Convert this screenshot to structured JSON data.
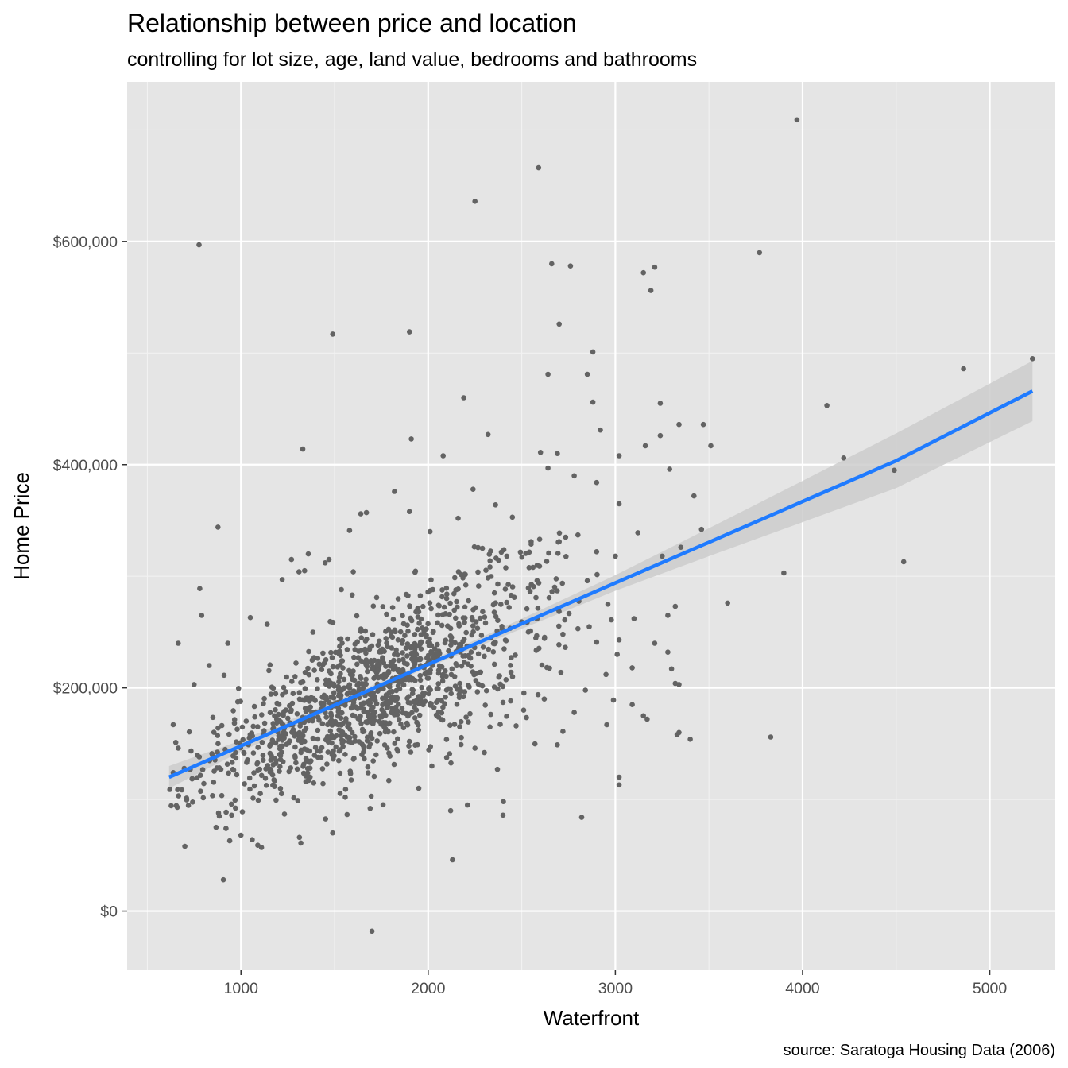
{
  "chart_data": {
    "type": "scatter",
    "title": "Relationship between price and location",
    "subtitle": "controlling for lot size, age, land value, bedrooms and bathrooms",
    "caption": "source: Saratoga Housing Data (2006)",
    "xlabel": "Waterfront",
    "ylabel": "Home Price",
    "xlim": [
      392,
      5350
    ],
    "ylim": [
      -53000,
      743000
    ],
    "x_ticks": [
      {
        "value": 1000,
        "label": "1000"
      },
      {
        "value": 2000,
        "label": "2000"
      },
      {
        "value": 3000,
        "label": "3000"
      },
      {
        "value": 4000,
        "label": "4000"
      },
      {
        "value": 5000,
        "label": "5000"
      }
    ],
    "y_ticks": [
      {
        "value": 0,
        "label": "$0"
      },
      {
        "value": 200000,
        "label": "$200,000"
      },
      {
        "value": 400000,
        "label": "$400,000"
      },
      {
        "value": 600000,
        "label": "$600,000"
      }
    ],
    "grid": true,
    "background": "#e5e5e5",
    "point_color": "#636363",
    "fit_color": "#1f7bff",
    "ribbon_color": "#cccccc",
    "fit": {
      "method": "lm",
      "x": [
        616,
        1000,
        1500,
        2000,
        2500,
        3000,
        3500,
        4000,
        4500,
        5228
      ],
      "y": [
        120000,
        148000,
        184500,
        221000,
        257500,
        294000,
        330500,
        367000,
        403500,
        466000
      ],
      "lower": [
        110000,
        143000,
        181000,
        218500,
        253000,
        287000,
        318000,
        348500,
        379000,
        439000
      ],
      "upper": [
        130000,
        153000,
        188000,
        223500,
        262000,
        301000,
        343000,
        385500,
        428000,
        493000
      ]
    },
    "points": [
      [
        776,
        597000
      ],
      [
        2250,
        636000
      ],
      [
        2590,
        666000
      ],
      [
        3970,
        709000
      ],
      [
        3770,
        590000
      ],
      [
        1490,
        517000
      ],
      [
        1900,
        519000
      ],
      [
        2660,
        580000
      ],
      [
        2760,
        578000
      ],
      [
        3150,
        572000
      ],
      [
        3210,
        577000
      ],
      [
        3190,
        556000
      ],
      [
        2700,
        526000
      ],
      [
        2880,
        501000
      ],
      [
        2640,
        481000
      ],
      [
        2850,
        481000
      ],
      [
        2190,
        460000
      ],
      [
        2880,
        456000
      ],
      [
        3240,
        455000
      ],
      [
        4130,
        453000
      ],
      [
        4860,
        486000
      ],
      [
        5228,
        495000
      ],
      [
        1910,
        423000
      ],
      [
        1330,
        414000
      ],
      [
        2320,
        427000
      ],
      [
        2920,
        431000
      ],
      [
        3340,
        436000
      ],
      [
        3470,
        436000
      ],
      [
        3510,
        417000
      ],
      [
        4220,
        406000
      ],
      [
        4490,
        395000
      ],
      [
        4540,
        313000
      ],
      [
        3900,
        303000
      ],
      [
        3600,
        276000
      ],
      [
        3830,
        156000
      ],
      [
        3020,
        408000
      ],
      [
        2080,
        408000
      ],
      [
        2600,
        411000
      ],
      [
        2690,
        410000
      ],
      [
        3160,
        417000
      ],
      [
        3240,
        426000
      ],
      [
        3290,
        396000
      ],
      [
        3420,
        372000
      ],
      [
        3350,
        326000
      ],
      [
        3460,
        342000
      ],
      [
        877,
        344000
      ],
      [
        1640,
        356000
      ],
      [
        1670,
        357000
      ],
      [
        1580,
        341000
      ],
      [
        1360,
        320000
      ],
      [
        1310,
        304000
      ],
      [
        1450,
        312000
      ],
      [
        1220,
        297000
      ],
      [
        1820,
        376000
      ],
      [
        1900,
        358000
      ],
      [
        2010,
        340000
      ],
      [
        2160,
        352000
      ],
      [
        2240,
        378000
      ],
      [
        2360,
        364000
      ],
      [
        2450,
        353000
      ],
      [
        2550,
        331000
      ],
      [
        2640,
        397000
      ],
      [
        2780,
        390000
      ],
      [
        2900,
        384000
      ],
      [
        3020,
        365000
      ],
      [
        3120,
        339000
      ],
      [
        3250,
        318000
      ],
      [
        3320,
        273000
      ],
      [
        3280,
        265000
      ],
      [
        3100,
        262000
      ],
      [
        3020,
        243000
      ],
      [
        3010,
        230000
      ],
      [
        3090,
        218000
      ],
      [
        3210,
        240000
      ],
      [
        3280,
        232000
      ],
      [
        3320,
        204000
      ],
      [
        3340,
        203000
      ],
      [
        3300,
        217000
      ],
      [
        3170,
        172000
      ],
      [
        3150,
        175000
      ],
      [
        3330,
        158000
      ],
      [
        3340,
        160000
      ],
      [
        3400,
        154000
      ],
      [
        2990,
        189000
      ],
      [
        3090,
        185000
      ],
      [
        3020,
        120000
      ],
      [
        3020,
        113000
      ],
      [
        2820,
        84000
      ],
      [
        2400,
        86000
      ],
      [
        2210,
        95000
      ],
      [
        2120,
        90000
      ],
      [
        2130,
        46000
      ],
      [
        2020,
        130000
      ],
      [
        1950,
        110000
      ],
      [
        1790,
        117000
      ],
      [
        1700,
        -18000
      ],
      [
        1690,
        92000
      ],
      [
        1490,
        70000
      ],
      [
        1320,
        61000
      ],
      [
        1110,
        57000
      ],
      [
        1090,
        59000
      ],
      [
        1060,
        64000
      ],
      [
        1000,
        68000
      ],
      [
        940,
        63000
      ],
      [
        906,
        28000
      ],
      [
        920,
        74000
      ],
      [
        950,
        86000
      ],
      [
        880,
        88000
      ],
      [
        700,
        58000
      ],
      [
        660,
        93000
      ],
      [
        790,
        265000
      ],
      [
        780,
        289000
      ],
      [
        665,
        240000
      ],
      [
        750,
        203000
      ],
      [
        830,
        220000
      ],
      [
        1050,
        263000
      ],
      [
        930,
        240000
      ],
      [
        1140,
        257000
      ],
      [
        1340,
        305000
      ],
      [
        1270,
        315000
      ],
      [
        1600,
        304000
      ],
      [
        1470,
        315000
      ],
      [
        2290,
        325000
      ],
      [
        2420,
        318000
      ],
      [
        2560,
        308000
      ],
      [
        2700,
        331000
      ],
      [
        2800,
        337000
      ],
      [
        2900,
        322000
      ],
      [
        3000,
        318000
      ],
      [
        2850,
        296000
      ],
      [
        2960,
        275000
      ],
      [
        2720,
        248000
      ],
      [
        2800,
        253000
      ],
      [
        2900,
        241000
      ],
      [
        2950,
        212000
      ],
      [
        2840,
        198000
      ],
      [
        2780,
        178000
      ],
      [
        2620,
        190000
      ],
      [
        2510,
        180000
      ],
      [
        2470,
        166000
      ],
      [
        2400,
        187000
      ],
      [
        2330,
        165000
      ],
      [
        2250,
        146000
      ],
      [
        2300,
        142000
      ],
      [
        2370,
        127000
      ],
      [
        2690,
        149000
      ],
      [
        2720,
        161000
      ]
    ]
  }
}
